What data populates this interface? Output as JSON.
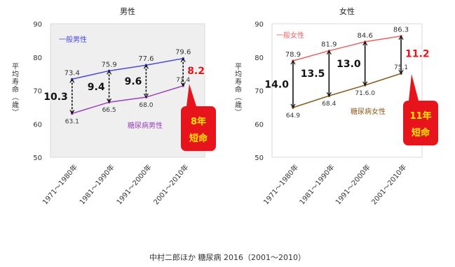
{
  "source_note": "中村二郎ほか 糖尿病 2016（2001〜2010）",
  "chart_data": [
    {
      "type": "line",
      "title": "男性",
      "ylabel": "平均寿命（歳）",
      "ylim": [
        50,
        90
      ],
      "yticks": [
        50,
        60,
        70,
        80,
        90
      ],
      "categories": [
        "1971〜1980年",
        "1981〜1990年",
        "1991〜2000年",
        "2001〜2010年"
      ],
      "grid": false,
      "series": [
        {
          "name": "一般男性",
          "values": [
            73.4,
            75.9,
            77.6,
            79.6
          ],
          "color": "#4a4ae0"
        },
        {
          "name": "糖尿病男性",
          "values": [
            63.1,
            66.5,
            68.0,
            71.4
          ],
          "color": "#9a3fbf"
        }
      ],
      "point_labels_top": [
        "73.4",
        "75.9",
        "77.6",
        "79.6"
      ],
      "point_labels_bottom": [
        "63.1",
        "66.5",
        "68.0",
        "71.4"
      ],
      "gaps": [
        "10.3",
        "9.4",
        "9.6",
        "8.2"
      ],
      "callout": [
        "8年",
        "短命"
      ],
      "plot_bg": "#efefef",
      "callout_color": "#e8141c"
    },
    {
      "type": "line",
      "title": "女性",
      "ylabel": "平均寿命（歳）",
      "ylim": [
        50,
        90
      ],
      "yticks": [
        50,
        60,
        70,
        80,
        90
      ],
      "categories": [
        "1971〜1980年",
        "1981〜1990年",
        "1991〜2000年",
        "2001〜2010年"
      ],
      "grid": false,
      "series": [
        {
          "name": "一般女性",
          "values": [
            78.9,
            81.9,
            84.6,
            86.3
          ],
          "color": "#f06060"
        },
        {
          "name": "糖尿病女性",
          "values": [
            64.9,
            68.4,
            71.6,
            75.1
          ],
          "color": "#8a5a1a"
        }
      ],
      "point_labels_top": [
        "78.9",
        "81.9",
        "84.6",
        "86.3"
      ],
      "point_labels_bottom": [
        "64.9",
        "68.4",
        "71.6.0",
        "75.1"
      ],
      "gaps": [
        "14.0",
        "13.5",
        "13.0",
        "11.2"
      ],
      "callout": [
        "11年",
        "短命"
      ],
      "plot_bg": "#ffffff",
      "callout_color": "#e8141c"
    }
  ]
}
